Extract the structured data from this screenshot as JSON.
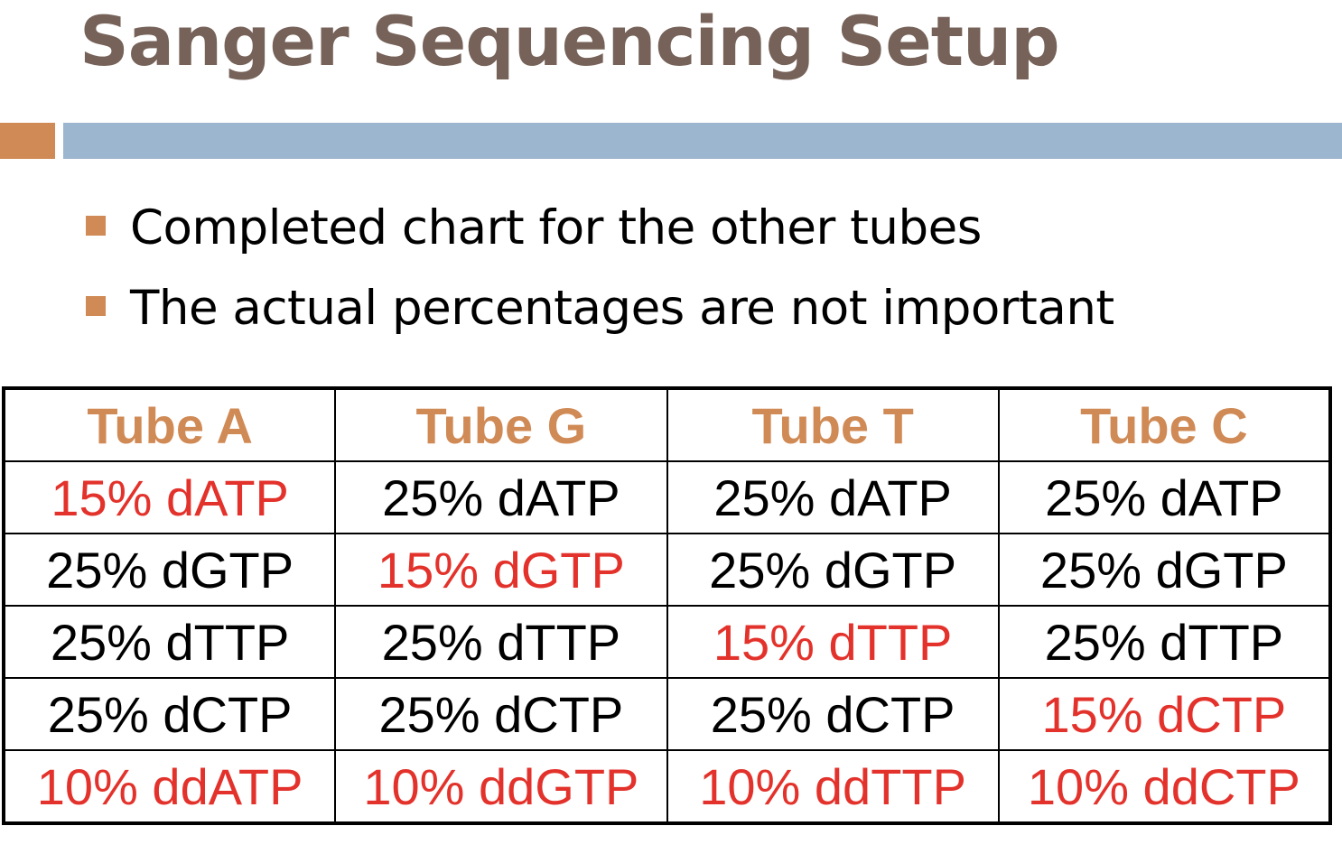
{
  "title": "Sanger Sequencing Setup",
  "bullets": [
    "Completed chart for the other tubes",
    "The actual percentages are not important"
  ],
  "colors": {
    "title": "#766259",
    "accent_orange": "#d08a55",
    "accent_blue": "#9db6cf",
    "highlight_red": "#e3322b"
  },
  "table": {
    "headers": [
      "Tube A",
      "Tube G",
      "Tube T",
      "Tube C"
    ],
    "rows": [
      [
        "15% dATP",
        "25% dATP",
        "25% dATP",
        "25% dATP"
      ],
      [
        "25% dGTP",
        "15% dGTP",
        "25% dGTP",
        "25% dGTP"
      ],
      [
        "25% dTTP",
        "25% dTTP",
        "15% dTTP",
        "25% dTTP"
      ],
      [
        "25% dCTP",
        "25% dCTP",
        "25% dCTP",
        "15% dCTP"
      ],
      [
        "10% ddATP",
        "10% ddGTP",
        "10% ddTTP",
        "10% ddCTP"
      ]
    ]
  }
}
